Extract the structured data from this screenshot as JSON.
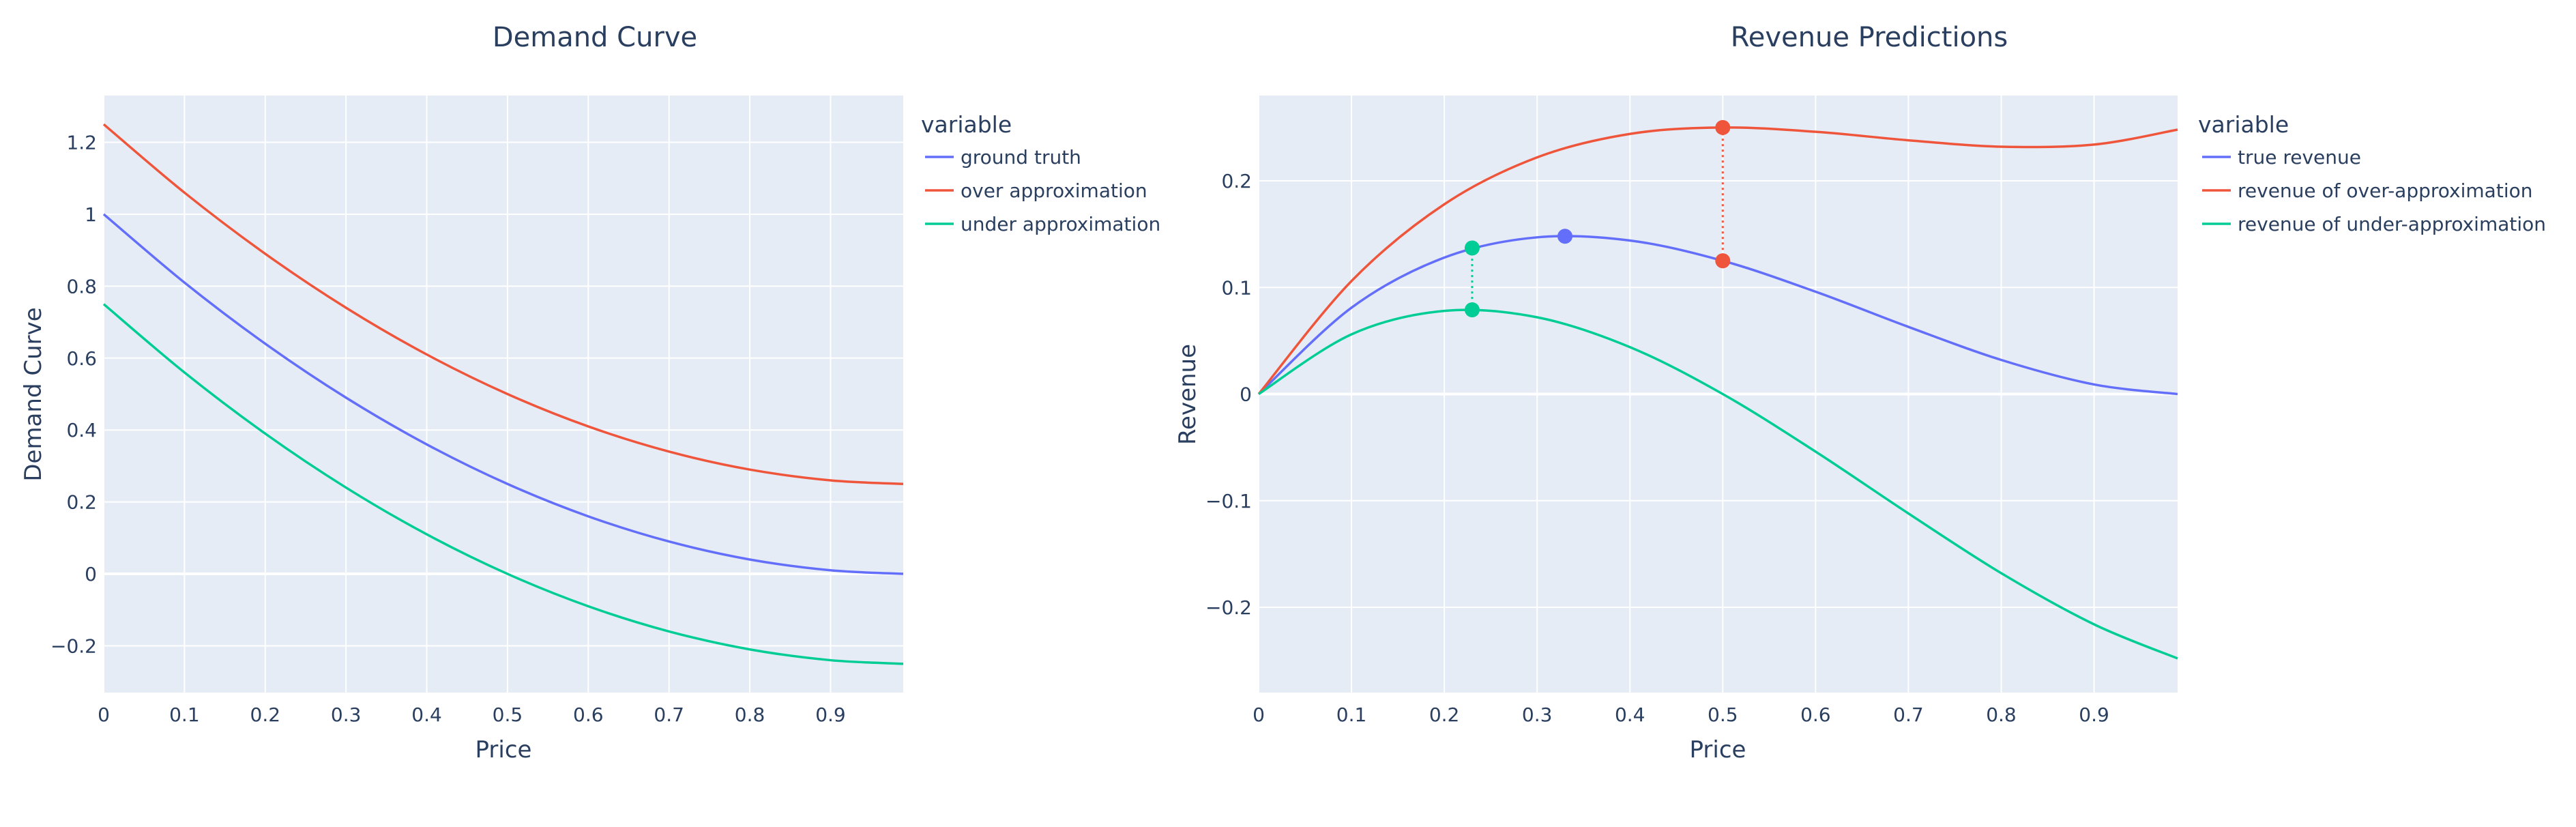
{
  "chart_data": [
    {
      "type": "line",
      "title": "Demand Curve",
      "xlabel": "Price",
      "ylabel": "Demand Curve",
      "xlim": [
        0,
        0.99
      ],
      "ylim": [
        -0.33,
        1.33
      ],
      "xticks": [
        0,
        0.1,
        0.2,
        0.3,
        0.4,
        0.5,
        0.6,
        0.7,
        0.8,
        0.9
      ],
      "xtick_labels": [
        "0",
        "0.1",
        "0.2",
        "0.3",
        "0.4",
        "0.5",
        "0.6",
        "0.7",
        "0.8",
        "0.9"
      ],
      "yticks": [
        -0.2,
        0,
        0.2,
        0.4,
        0.6,
        0.8,
        1,
        1.2
      ],
      "ytick_labels": [
        "−0.2",
        "0",
        "0.2",
        "0.4",
        "0.6",
        "0.8",
        "1",
        "1.2"
      ],
      "grid": true,
      "legend": {
        "title": "variable",
        "placement": "right"
      },
      "x": [
        0,
        0.1,
        0.2,
        0.3,
        0.4,
        0.5,
        0.6,
        0.7,
        0.8,
        0.9,
        0.99
      ],
      "series": [
        {
          "name": "ground truth",
          "color": "#636efa",
          "values": [
            1.0,
            0.81,
            0.64,
            0.49,
            0.36,
            0.25,
            0.16,
            0.09,
            0.04,
            0.01,
            0.0
          ]
        },
        {
          "name": "over approximation",
          "color": "#ef553b",
          "values": [
            1.25,
            1.06,
            0.89,
            0.74,
            0.61,
            0.5,
            0.41,
            0.34,
            0.29,
            0.26,
            0.25
          ]
        },
        {
          "name": "under approximation",
          "color": "#00cc96",
          "values": [
            0.75,
            0.56,
            0.39,
            0.24,
            0.11,
            0.0,
            -0.09,
            -0.16,
            -0.21,
            -0.24,
            -0.25
          ]
        }
      ]
    },
    {
      "type": "line",
      "title": "Revenue Predictions",
      "xlabel": "Price",
      "ylabel": "Revenue",
      "xlim": [
        0,
        0.99
      ],
      "ylim": [
        -0.28,
        0.28
      ],
      "xticks": [
        0,
        0.1,
        0.2,
        0.3,
        0.4,
        0.5,
        0.6,
        0.7,
        0.8,
        0.9
      ],
      "xtick_labels": [
        "0",
        "0.1",
        "0.2",
        "0.3",
        "0.4",
        "0.5",
        "0.6",
        "0.7",
        "0.8",
        "0.9"
      ],
      "yticks": [
        -0.2,
        -0.1,
        0,
        0.1,
        0.2
      ],
      "ytick_labels": [
        "−0.2",
        "−0.1",
        "0",
        "0.1",
        "0.2"
      ],
      "grid": true,
      "legend": {
        "title": "variable",
        "placement": "right"
      },
      "x": [
        0,
        0.1,
        0.2,
        0.3,
        0.4,
        0.5,
        0.6,
        0.7,
        0.8,
        0.9,
        0.99
      ],
      "series": [
        {
          "name": "true revenue",
          "color": "#636efa",
          "values": [
            0.0,
            0.081,
            0.128,
            0.147,
            0.144,
            0.125,
            0.096,
            0.063,
            0.032,
            0.009,
            0.0
          ]
        },
        {
          "name": "revenue of over-approximation",
          "color": "#ef553b",
          "values": [
            0.0,
            0.106,
            0.178,
            0.222,
            0.244,
            0.25,
            0.246,
            0.238,
            0.232,
            0.234,
            0.248
          ]
        },
        {
          "name": "revenue of under-approximation",
          "color": "#00cc96",
          "values": [
            0.0,
            0.056,
            0.078,
            0.072,
            0.044,
            0.0,
            -0.054,
            -0.112,
            -0.168,
            -0.216,
            -0.248
          ]
        }
      ],
      "markers": [
        {
          "x": 0.33,
          "y": 0.148,
          "color": "#636efa"
        },
        {
          "x": 0.23,
          "y": 0.137,
          "color": "#00cc96"
        },
        {
          "x": 0.23,
          "y": 0.079,
          "color": "#00cc96"
        },
        {
          "x": 0.5,
          "y": 0.25,
          "color": "#ef553b"
        },
        {
          "x": 0.5,
          "y": 0.125,
          "color": "#ef553b"
        }
      ],
      "dotted_links": [
        {
          "x": 0.23,
          "y0": 0.079,
          "y1": 0.137,
          "color": "#00cc96"
        },
        {
          "x": 0.5,
          "y0": 0.125,
          "y1": 0.25,
          "color": "#ef553b"
        }
      ]
    }
  ]
}
